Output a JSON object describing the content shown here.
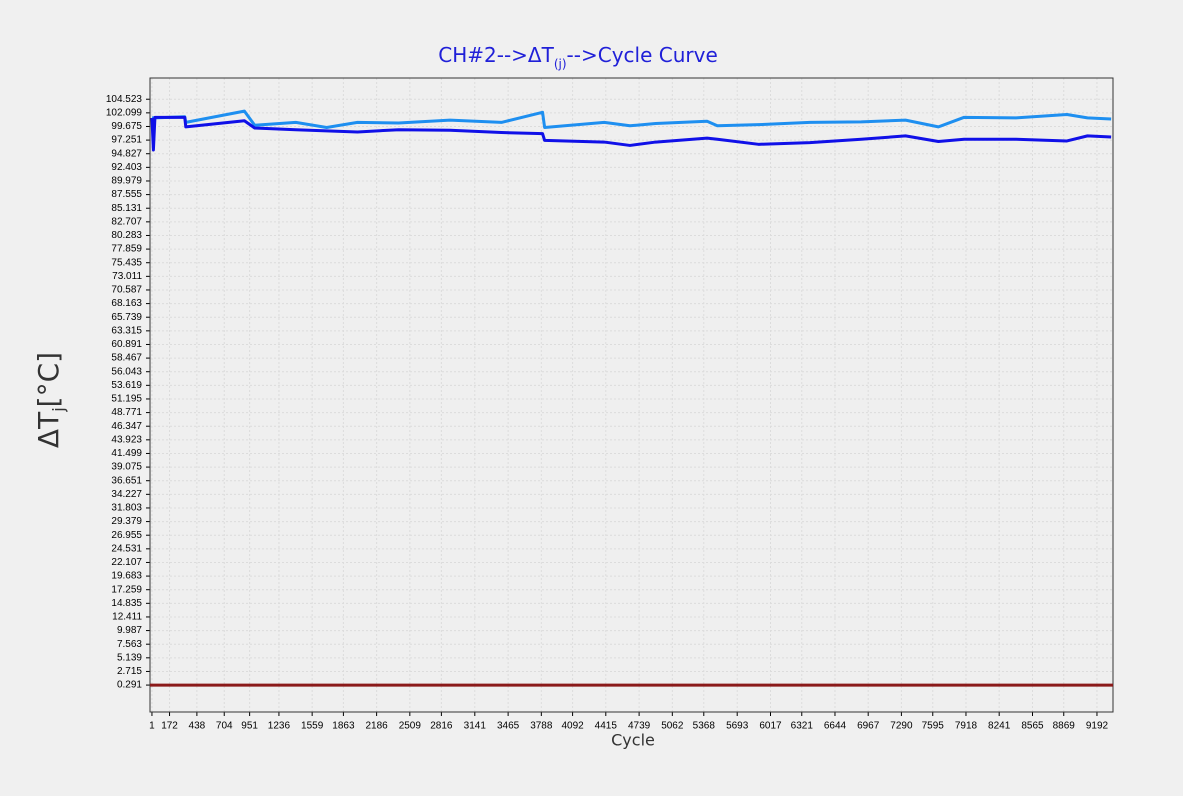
{
  "chart_data": {
    "type": "line",
    "title": "CH#2-->ΔT",
    "title_subscript": "(j)",
    "title_suffix": "-->Cycle Curve",
    "title_color": "#2020d8",
    "xlabel": "Cycle",
    "ylabel": "ΔT",
    "ylabel_subscript": "j",
    "ylabel_suffix": "[°C]",
    "grid": true,
    "xlim": [
      -18,
      9348
    ],
    "ylim": [
      -4.5,
      108.3
    ],
    "xticks": [
      1,
      172,
      438,
      704,
      951,
      1236,
      1559,
      1863,
      2186,
      2509,
      2816,
      3141,
      3465,
      3788,
      4092,
      4415,
      4739,
      5062,
      5368,
      5693,
      6017,
      6321,
      6644,
      6967,
      7290,
      7595,
      7918,
      8241,
      8565,
      8869,
      9192
    ],
    "yticks": [
      0.291,
      2.715,
      5.139,
      7.563,
      9.987,
      12.411,
      14.835,
      17.259,
      19.683,
      22.107,
      24.531,
      26.955,
      29.379,
      31.803,
      34.227,
      36.651,
      39.075,
      41.499,
      43.923,
      46.347,
      48.771,
      51.195,
      53.619,
      56.043,
      58.467,
      60.891,
      63.315,
      65.739,
      68.163,
      70.587,
      73.011,
      75.435,
      77.859,
      80.283,
      82.707,
      85.131,
      87.555,
      89.979,
      92.403,
      94.827,
      97.251,
      99.675,
      102.099,
      104.523
    ],
    "series": [
      {
        "color": "#1e8ff0",
        "x": [
          1,
          15,
          30,
          320,
          330,
          900,
          1000,
          1400,
          1700,
          2000,
          2400,
          2900,
          3400,
          3800,
          3820,
          4400,
          4650,
          4900,
          5400,
          5500,
          5900,
          6400,
          6900,
          7330,
          7650,
          7900,
          8400,
          8900,
          9100,
          9330
        ],
        "values": [
          101.2,
          101.2,
          101.2,
          101.4,
          100.4,
          102.4,
          99.9,
          100.4,
          99.5,
          100.4,
          100.3,
          100.8,
          100.4,
          102.2,
          99.5,
          100.4,
          99.8,
          100.2,
          100.6,
          99.8,
          100.0,
          100.4,
          100.5,
          100.8,
          99.6,
          101.3,
          101.2,
          101.8,
          101.2,
          101.0
        ]
      },
      {
        "color": "#1010e8",
        "x": [
          1,
          15,
          30,
          320,
          330,
          900,
          1000,
          1400,
          1700,
          2000,
          2400,
          2900,
          3400,
          3800,
          3820,
          4400,
          4650,
          4900,
          5400,
          5500,
          5900,
          6400,
          6900,
          7330,
          7650,
          7900,
          8400,
          8900,
          9100,
          9330
        ],
        "values": [
          101.2,
          95.5,
          101.3,
          101.3,
          99.6,
          100.7,
          99.4,
          99.1,
          98.9,
          98.7,
          99.1,
          99.0,
          98.6,
          98.4,
          97.2,
          96.9,
          96.3,
          96.9,
          97.6,
          97.4,
          96.5,
          96.8,
          97.4,
          98.0,
          97.0,
          97.4,
          97.4,
          97.1,
          98.0,
          97.8
        ]
      },
      {
        "color": "#8b1a1a",
        "x": [
          -18,
          9348
        ],
        "values": [
          0.291,
          0.291
        ]
      }
    ]
  }
}
